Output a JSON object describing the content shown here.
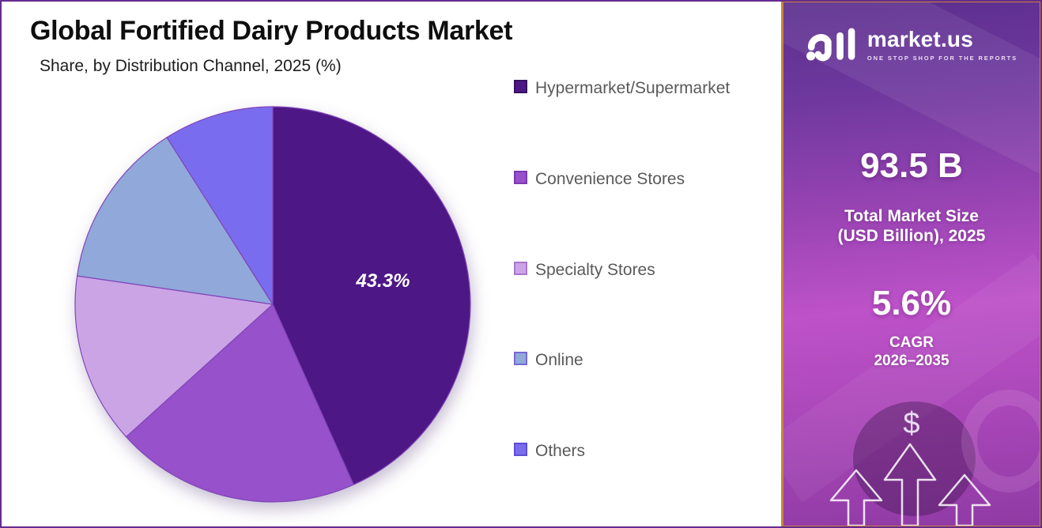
{
  "page": {
    "title": "Global Fortified Dairy Products Market",
    "subtitle": "Share, by Distribution Channel, 2025 (%)"
  },
  "chart_data": {
    "type": "pie",
    "title": "Global Fortified Dairy Products Market",
    "subtitle": "Share, by Distribution Channel, 2025 (%)",
    "unit": "%",
    "categories": [
      "Hypermarket/Supermarket",
      "Convenience Stores",
      "Specialty Stores",
      "Online",
      "Others"
    ],
    "values": [
      43.3,
      20.0,
      14.0,
      13.7,
      9.0
    ],
    "data_labels": [
      "43.3%",
      "",
      "",
      "",
      ""
    ],
    "colors": [
      "#4e1786",
      "#9751cb",
      "#cba4e6",
      "#90a9da",
      "#7a6cee"
    ],
    "colors_border": [
      "#37105f",
      "#7b3aaf",
      "#a877ce",
      "#7668d2",
      "#5e4ed2"
    ],
    "slice_stroke": "#8046b8",
    "label_color": "#ffffff",
    "legend_position": "right",
    "start_angle_deg": 0,
    "direction": "clockwise"
  },
  "sidebar": {
    "brand": {
      "name": "market.us",
      "tagline": "ONE STOP SHOP FOR THE REPORTS"
    },
    "stats": [
      {
        "value": "93.5 B",
        "label_line1": "Total Market Size",
        "label_line2": "(USD Billion), 2025"
      },
      {
        "value": "5.6%",
        "label_line1": "CAGR",
        "label_line2": "2026–2035"
      }
    ],
    "dollar_symbol": "$",
    "accent_border_color": "#c8853a",
    "background_colors": [
      "#5c2f8e",
      "#9a44b4",
      "#be52c9",
      "#8f3aa4"
    ]
  }
}
